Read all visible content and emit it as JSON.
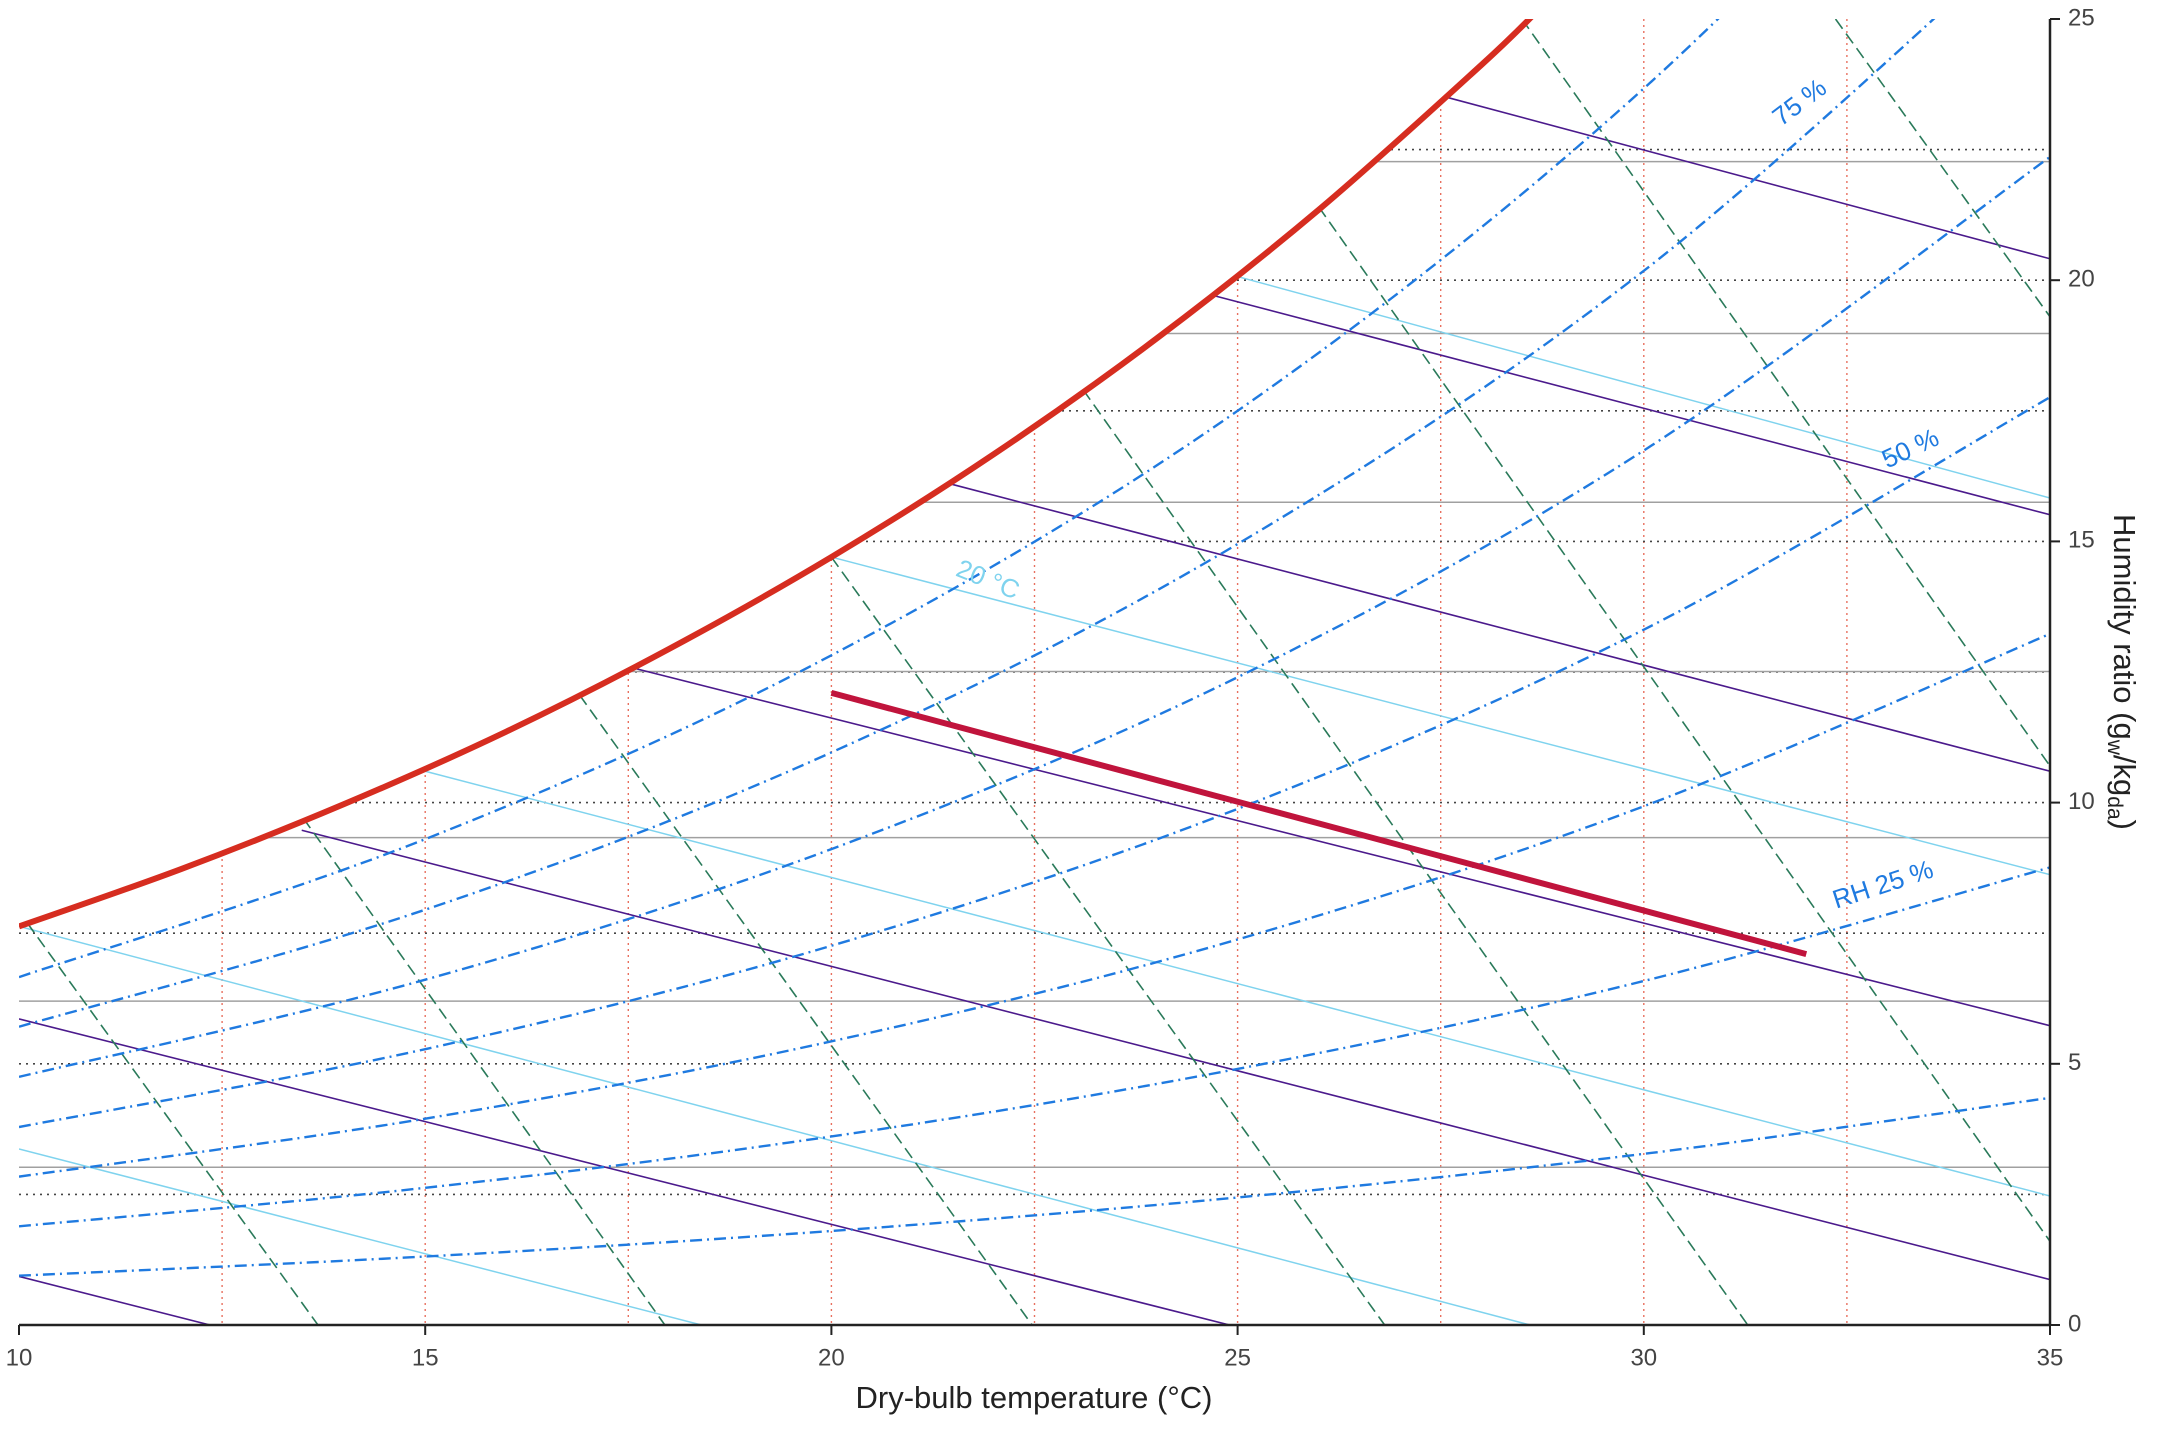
{
  "chart_data": {
    "type": "psychrometric",
    "xlabel": "Dry-bulb temperature (°C)",
    "ylabel": [
      "Humidity ratio (g",
      "w",
      "/kg",
      "da",
      ")"
    ],
    "xlim": [
      10,
      35
    ],
    "ylim": [
      0,
      25
    ],
    "xticks": [
      10,
      15,
      20,
      25,
      30,
      35
    ],
    "yticks": [
      0,
      5,
      10,
      15,
      20,
      25
    ],
    "xgrid": [
      12.5,
      15,
      17.5,
      20,
      22.5,
      25,
      27.5,
      30,
      32.5
    ],
    "ygrid": [
      2.5,
      5,
      7.5,
      10,
      12.5,
      15,
      17.5,
      20,
      22.5
    ],
    "saturation": {
      "color": "#d62d20",
      "x": [
        10,
        12,
        14,
        16,
        18,
        20,
        22,
        24,
        26,
        28,
        28.7
      ],
      "values": [
        7.63,
        8.73,
        9.97,
        11.36,
        12.94,
        14.7,
        16.67,
        18.88,
        21.35,
        24.12,
        25.17
      ]
    },
    "rh_lines": {
      "color": "#1f7ae0",
      "x": [
        10,
        15,
        20,
        25,
        30,
        35
      ],
      "curves": [
        [
          0.943,
          1.311,
          1.8,
          2.441,
          3.276,
          4.348
        ],
        [
          1.889,
          2.626,
          3.609,
          4.902,
          6.585,
          8.76
        ],
        [
          2.84,
          3.95,
          5.43,
          7.38,
          9.93,
          13.23
        ],
        [
          3.79,
          5.28,
          7.26,
          9.88,
          13.31,
          17.76
        ],
        [
          4.75,
          6.61,
          9.11,
          12.4,
          16.74,
          22.36
        ],
        [
          5.71,
          7.95,
          10.96,
          14.95,
          20.18,
          27.03
        ],
        [
          6.66,
          9.3,
          12.82,
          17.5,
          23.67,
          31.5
        ]
      ]
    },
    "enthalpy_lines": {
      "color": "#4b1a8c",
      "lines": [
        {
          "x": [
            27.53,
            35
          ],
          "values": [
            23.52,
            20.41
          ]
        },
        {
          "x": [
            24.72,
            35
          ],
          "values": [
            19.7,
            15.51
          ]
        },
        {
          "x": [
            21.49,
            35
          ],
          "values": [
            16.09,
            10.6
          ]
        },
        {
          "x": [
            17.5,
            35
          ],
          "values": [
            12.6,
            5.73
          ]
        },
        {
          "x": [
            13.48,
            35
          ],
          "values": [
            9.47,
            0.87
          ]
        },
        {
          "x": [
            10,
            24.9
          ],
          "values": [
            5.86,
            0
          ]
        },
        {
          "x": [
            10,
            12.35
          ],
          "values": [
            0.93,
            0
          ]
        }
      ]
    },
    "wetbulb_lines": {
      "color": "#7fd3ee",
      "lines": [
        {
          "x": [
            25,
            35
          ],
          "values": [
            20.07,
            15.83
          ]
        },
        {
          "x": [
            20,
            35
          ],
          "values": [
            14.7,
            8.62
          ]
        },
        {
          "x": [
            15,
            35
          ],
          "values": [
            10.6,
            2.47
          ]
        },
        {
          "x": [
            10,
            28.6
          ],
          "values": [
            7.63,
            0
          ]
        },
        {
          "x": [
            10,
            18.4
          ],
          "values": [
            3.37,
            0
          ]
        }
      ]
    },
    "volume_lines": {
      "color": "#2a7a5a",
      "lines": [
        {
          "x": [
            10.1,
            13.68
          ],
          "values": [
            7.7,
            0
          ]
        },
        {
          "x": [
            13.5,
            17.95
          ],
          "values": [
            9.7,
            0
          ]
        },
        {
          "x": [
            16.9,
            22.47
          ],
          "values": [
            12.06,
            0
          ]
        },
        {
          "x": [
            20,
            26.81
          ],
          "values": [
            14.7,
            0
          ]
        },
        {
          "x": [
            23.1,
            31.28
          ],
          "values": [
            17.9,
            0
          ]
        },
        {
          "x": [
            26,
            35
          ],
          "values": [
            21.4,
            1.6
          ]
        },
        {
          "x": [
            28.5,
            35
          ],
          "values": [
            25,
            10.7
          ]
        },
        {
          "x": [
            32.36,
            35
          ],
          "values": [
            25,
            19.3
          ]
        }
      ]
    },
    "gray_lines": {
      "color": "#a0a0a0",
      "values": [
        3.02,
        6.2,
        9.33,
        12.51,
        15.75,
        18.98,
        22.27
      ]
    },
    "process": {
      "color": "#c0143c",
      "x": [
        20,
        32
      ],
      "values": [
        12.1,
        7.1
      ]
    },
    "annotations": [
      {
        "text": "75 %",
        "x": 31.93,
        "y": 23.38,
        "color": "#1f7ae0"
      },
      {
        "text": "50 %",
        "x": 33.29,
        "y": 16.75,
        "color": "#1f7ae0"
      },
      {
        "text": "RH 25 %",
        "x": 32.95,
        "y": 8.4,
        "color": "#1f7ae0"
      },
      {
        "text": "20 °C",
        "x": 21.92,
        "y": 14.24,
        "color": "#7fd3ee"
      }
    ]
  }
}
